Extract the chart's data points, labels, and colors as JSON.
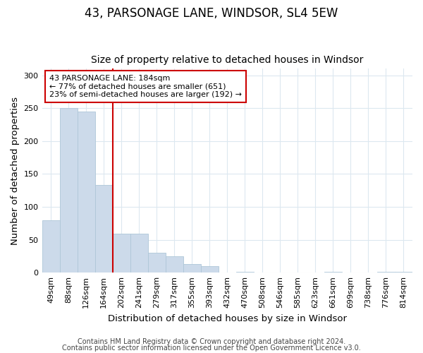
{
  "title": "43, PARSONAGE LANE, WINDSOR, SL4 5EW",
  "subtitle": "Size of property relative to detached houses in Windsor",
  "xlabel": "Distribution of detached houses by size in Windsor",
  "ylabel": "Number of detached properties",
  "footnote1": "Contains HM Land Registry data © Crown copyright and database right 2024.",
  "footnote2": "Contains public sector information licensed under the Open Government Licence v3.0.",
  "categories": [
    "49sqm",
    "88sqm",
    "126sqm",
    "164sqm",
    "202sqm",
    "241sqm",
    "279sqm",
    "317sqm",
    "355sqm",
    "393sqm",
    "432sqm",
    "470sqm",
    "508sqm",
    "546sqm",
    "585sqm",
    "623sqm",
    "661sqm",
    "699sqm",
    "738sqm",
    "776sqm",
    "814sqm"
  ],
  "values": [
    80,
    250,
    245,
    133,
    59,
    59,
    30,
    25,
    13,
    10,
    0,
    1,
    0,
    0,
    0,
    0,
    1,
    0,
    0,
    1,
    1
  ],
  "bar_color": "#ccdaea",
  "bar_edge_color": "#aec6d8",
  "vline_x": 3.5,
  "vline_color": "#cc0000",
  "annotation_text": "43 PARSONAGE LANE: 184sqm\n← 77% of detached houses are smaller (651)\n23% of semi-detached houses are larger (192) →",
  "annotation_box_color": "#cc0000",
  "ylim": [
    0,
    310
  ],
  "yticks": [
    0,
    50,
    100,
    150,
    200,
    250,
    300
  ],
  "bg_color": "#ffffff",
  "grid_color": "#dce8f0",
  "title_fontsize": 12,
  "subtitle_fontsize": 10,
  "axis_label_fontsize": 9.5,
  "tick_fontsize": 8,
  "annotation_fontsize": 8,
  "footnote_fontsize": 7
}
